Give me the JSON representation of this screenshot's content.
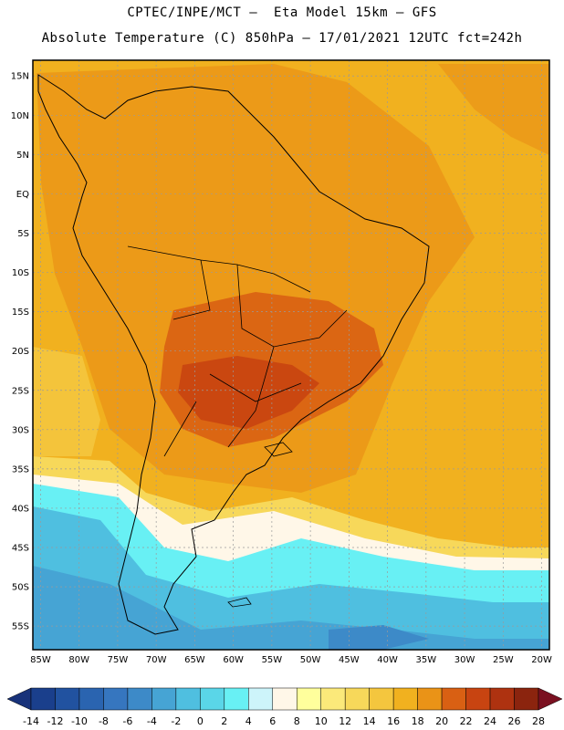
{
  "header": {
    "line1": "CPTEC/INPE/MCT –  Eta Model 15km – GFS",
    "line2": "Absolute Temperature (C) 850hPa – 17/01/2021 12UTC fct=242h"
  },
  "map": {
    "lon_range": [
      -86,
      -19
    ],
    "lat_range": [
      -58,
      17
    ],
    "lat_labels": [
      {
        "lat": 15,
        "text": "15N"
      },
      {
        "lat": 10,
        "text": "10N"
      },
      {
        "lat": 5,
        "text": "5N"
      },
      {
        "lat": 0,
        "text": "EQ"
      },
      {
        "lat": -5,
        "text": "5S"
      },
      {
        "lat": -10,
        "text": "10S"
      },
      {
        "lat": -15,
        "text": "15S"
      },
      {
        "lat": -20,
        "text": "20S"
      },
      {
        "lat": -25,
        "text": "25S"
      },
      {
        "lat": -30,
        "text": "30S"
      },
      {
        "lat": -35,
        "text": "35S"
      },
      {
        "lat": -40,
        "text": "40S"
      },
      {
        "lat": -45,
        "text": "45S"
      },
      {
        "lat": -50,
        "text": "50S"
      },
      {
        "lat": -55,
        "text": "55S"
      }
    ],
    "lon_labels": [
      {
        "lon": -85,
        "text": "85W"
      },
      {
        "lon": -80,
        "text": "80W"
      },
      {
        "lon": -75,
        "text": "75W"
      },
      {
        "lon": -70,
        "text": "70W"
      },
      {
        "lon": -65,
        "text": "65W"
      },
      {
        "lon": -60,
        "text": "60W"
      },
      {
        "lon": -55,
        "text": "55W"
      },
      {
        "lon": -50,
        "text": "50W"
      },
      {
        "lon": -45,
        "text": "45W"
      },
      {
        "lon": -40,
        "text": "40W"
      },
      {
        "lon": -35,
        "text": "35W"
      },
      {
        "lon": -30,
        "text": "30W"
      },
      {
        "lon": -25,
        "text": "25W"
      },
      {
        "lon": -20,
        "text": "20W"
      }
    ],
    "background_color": "#f1b11f"
  },
  "colorbar": {
    "labels": [
      "-14",
      "-12",
      "-10",
      "-8",
      "-6",
      "-4",
      "-2",
      "0",
      "2",
      "4",
      "6",
      "8",
      "10",
      "12",
      "14",
      "16",
      "18",
      "20",
      "22",
      "24",
      "26",
      "28"
    ],
    "colors": [
      "#1a3f8c",
      "#2152a0",
      "#2a64b0",
      "#3676bf",
      "#3d8ac8",
      "#46a4d4",
      "#4fbfe0",
      "#5ad6e8",
      "#68f0f4",
      "#cdf4fa",
      "#fff7e8",
      "#ffff9c",
      "#fbe97a",
      "#f7d85a",
      "#f4c63e",
      "#f1b11f",
      "#ea9317",
      "#d96013",
      "#c84411",
      "#ae3210",
      "#8b240e"
    ],
    "under_color": "#18327a",
    "over_color": "#7a1020"
  }
}
